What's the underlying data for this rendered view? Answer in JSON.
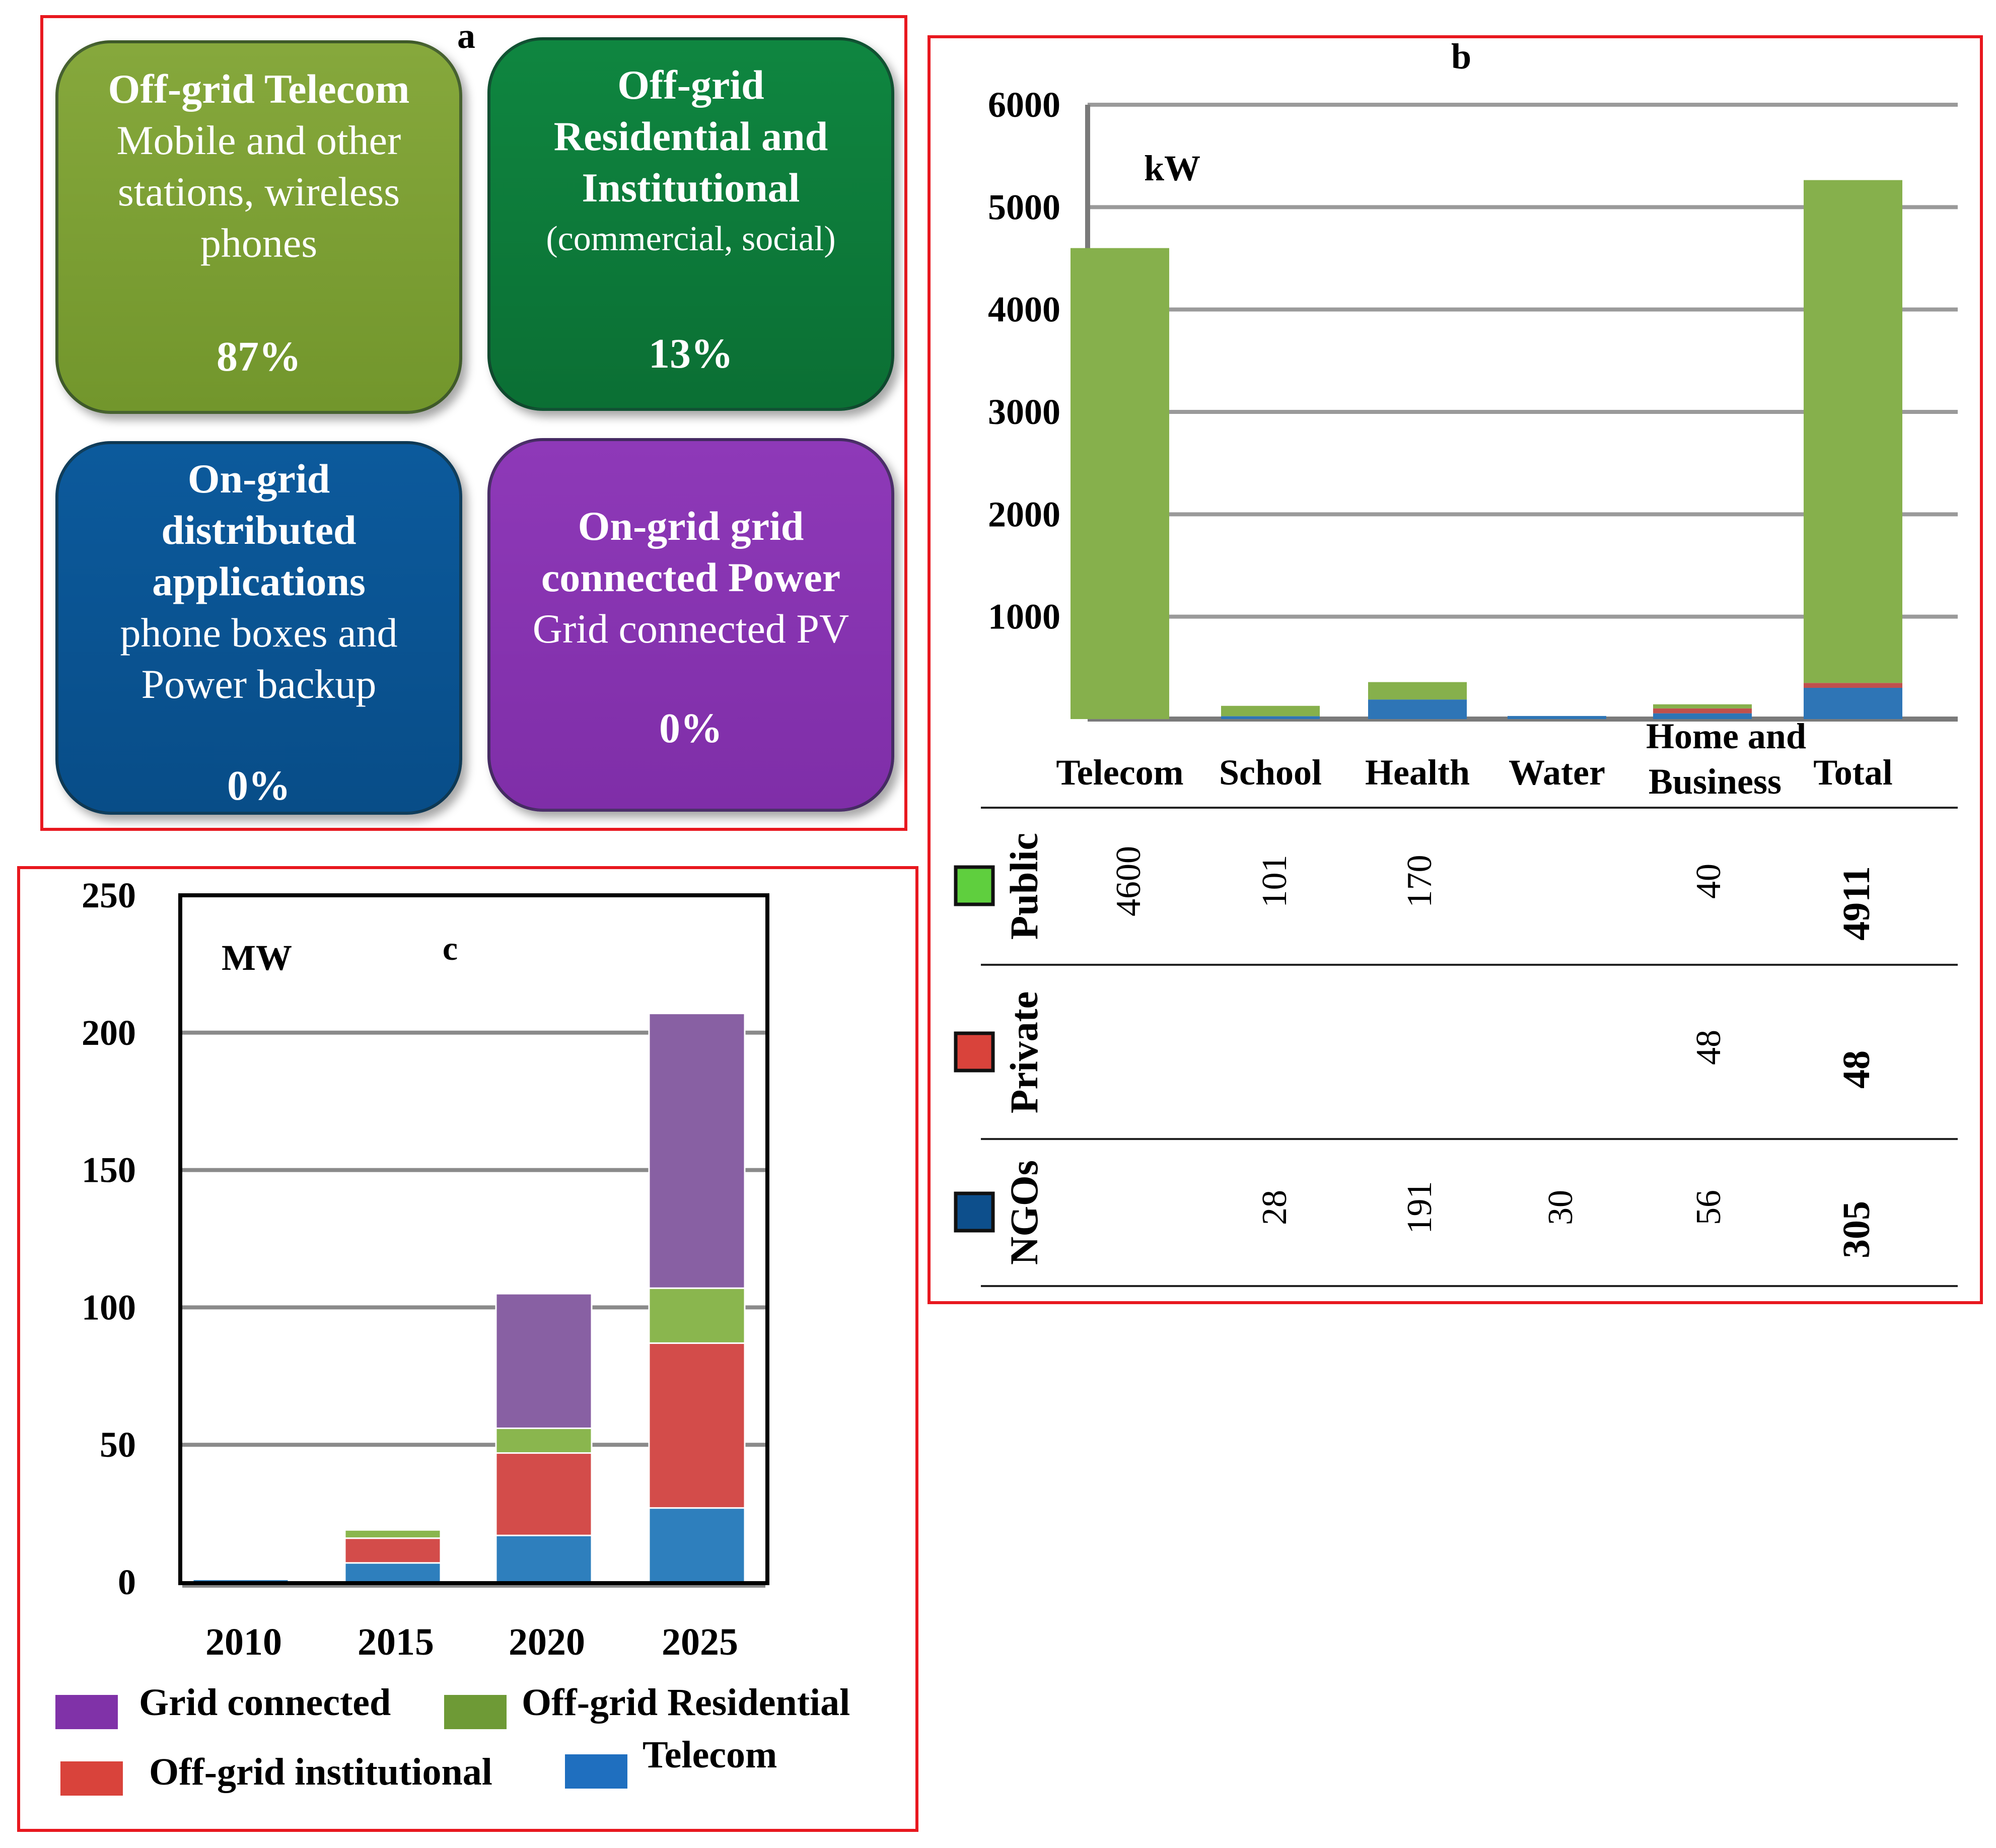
{
  "panel_a": {
    "letter": "a",
    "tiles": [
      {
        "head": "Off-grid Telecom",
        "body": [
          "Mobile and other",
          "stations, wireless",
          "phones"
        ],
        "pct": "87%",
        "color": "#7ba034"
      },
      {
        "head": "Off-grid",
        "head2": "Residential and",
        "head3": "Institutional",
        "body": [
          "(commercial,  social)"
        ],
        "pct": "13%",
        "color": "#0d7c3a"
      },
      {
        "head": "On-grid",
        "head2": "distributed",
        "head3": "applications",
        "body": [
          "phone boxes and",
          "Power backup"
        ],
        "pct": "0%",
        "color": "#0a5494"
      },
      {
        "head": "On-grid grid",
        "head2": "connected Power",
        "body": [
          "Grid connected PV"
        ],
        "pct": "0%",
        "color": "#8634b0"
      }
    ]
  },
  "chart_data": [
    {
      "id": "b",
      "type": "bar",
      "title": "b",
      "unit_label": "kW",
      "categories": [
        "Telecom",
        "School",
        "Health",
        "Water",
        "Home and Business",
        "Total"
      ],
      "ylim": [
        0,
        6000
      ],
      "yticks": [
        "1000",
        "2000",
        "3000",
        "4000",
        "5000",
        "6000"
      ],
      "series": [
        {
          "name": "NGOs",
          "color": "#2e75b6",
          "values": [
            0,
            28,
            191,
            30,
            56,
            305
          ]
        },
        {
          "name": "Private",
          "color": "#c0504d",
          "values": [
            0,
            0,
            0,
            0,
            48,
            48
          ]
        },
        {
          "name": "Public",
          "color": "#86b04c",
          "values": [
            4600,
            101,
            170,
            0,
            40,
            4911
          ]
        }
      ],
      "table": {
        "rows": [
          {
            "label": "Public",
            "swatch": "#5fcf3e",
            "cells": [
              "4600",
              "101",
              "170",
              "",
              "40",
              "4911"
            ]
          },
          {
            "label": "Private",
            "swatch": "#d9433b",
            "cells": [
              "",
              "",
              "",
              "",
              "48",
              "48"
            ]
          },
          {
            "label": "NGOs",
            "swatch": "#0d4f8c",
            "cells": [
              "",
              "28",
              "191",
              "30",
              "56",
              "305"
            ]
          }
        ]
      }
    },
    {
      "id": "c",
      "type": "bar",
      "title": "c",
      "unit_label": "MW",
      "categories": [
        "2010",
        "2015",
        "2020",
        "2025"
      ],
      "ylim": [
        0,
        250
      ],
      "yticks": [
        "0",
        "50",
        "100",
        "150",
        "200",
        "250"
      ],
      "series": [
        {
          "name": "Telecom",
          "color": "#2e7fbd",
          "values": [
            1,
            7,
            17,
            27
          ]
        },
        {
          "name": "Off-grid institutional",
          "color": "#d34c4a",
          "values": [
            0,
            9,
            30,
            60
          ]
        },
        {
          "name": "Off-grid Residential",
          "color": "#8ab64e",
          "values": [
            0,
            3,
            9,
            20
          ]
        },
        {
          "name": "Grid connected",
          "color": "#8860a3",
          "values": [
            0,
            0,
            49,
            100
          ]
        }
      ],
      "legend": [
        {
          "label": "Grid connected",
          "color": "#8032a8"
        },
        {
          "label": "Off-grid Residential",
          "color": "#6e9a36"
        },
        {
          "label": "Off-grid institutional",
          "color": "#d9433b"
        },
        {
          "label": "Telecom",
          "color": "#1f6fbf"
        }
      ]
    }
  ]
}
